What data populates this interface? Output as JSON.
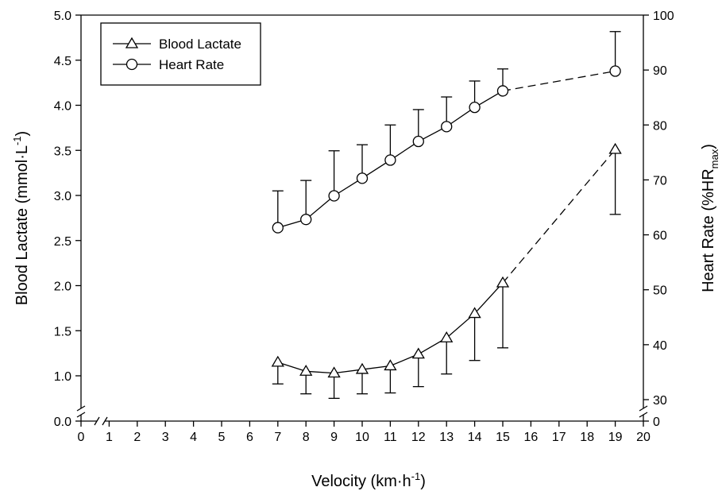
{
  "chart_data": {
    "type": "line",
    "xlabel": "Velocity (km·h",
    "xlabel_sup": "-1",
    "xlabel_end": ")",
    "ylabel_left": "Blood Lactate (mmol·L",
    "ylabel_left_sup": "-1",
    "ylabel_left_end": ")",
    "ylabel_right": "Heart Rate (%HR",
    "ylabel_right_sub": "max",
    "ylabel_right_end": ")",
    "xlim": [
      0,
      20
    ],
    "x_ticks": [
      "0",
      "1",
      "2",
      "3",
      "4",
      "5",
      "6",
      "7",
      "8",
      "9",
      "10",
      "11",
      "12",
      "13",
      "14",
      "15",
      "16",
      "17",
      "18",
      "19",
      "20"
    ],
    "ylim_left": [
      0.0,
      5.0
    ],
    "y_left_ticks": [
      "0.0",
      "1.0",
      "1.5",
      "2.0",
      "2.5",
      "3.0",
      "3.5",
      "4.0",
      "4.5",
      "5.0"
    ],
    "y_left_tick_values": [
      0.0,
      1.0,
      1.5,
      2.0,
      2.5,
      3.0,
      3.5,
      4.0,
      4.5,
      5.0
    ],
    "ylim_right": [
      0,
      100
    ],
    "y_right_ticks": [
      "0",
      "30",
      "40",
      "50",
      "60",
      "70",
      "80",
      "90",
      "100"
    ],
    "y_right_tick_values": [
      0,
      30,
      40,
      50,
      60,
      70,
      80,
      90,
      100
    ],
    "axis_breaks": {
      "x": true,
      "y_left": true,
      "y_right": true
    },
    "grid": false,
    "legend_position": "top-left",
    "series": [
      {
        "name": "Blood Lactate",
        "axis": "left",
        "marker": "triangle",
        "error_direction": "down",
        "x": [
          7,
          8,
          9,
          10,
          11,
          12,
          13,
          14,
          15,
          19
        ],
        "y": [
          1.15,
          1.05,
          1.03,
          1.07,
          1.11,
          1.24,
          1.42,
          1.69,
          2.03,
          3.51
        ],
        "error": [
          0.24,
          0.25,
          0.28,
          0.27,
          0.3,
          0.36,
          0.4,
          0.52,
          0.72,
          0.72
        ],
        "dashed_from_x": 15
      },
      {
        "name": "Heart Rate",
        "axis": "right",
        "marker": "circle",
        "error_direction": "up",
        "x": [
          7,
          8,
          9,
          10,
          11,
          12,
          13,
          14,
          15,
          19
        ],
        "y": [
          61.3,
          62.8,
          67.1,
          70.3,
          73.6,
          77.0,
          79.7,
          83.2,
          86.2,
          89.8
        ],
        "error": [
          6.7,
          7.1,
          8.2,
          6.1,
          6.4,
          5.8,
          5.4,
          4.8,
          4.0,
          7.2
        ],
        "dashed_from_x": 15
      }
    ]
  }
}
